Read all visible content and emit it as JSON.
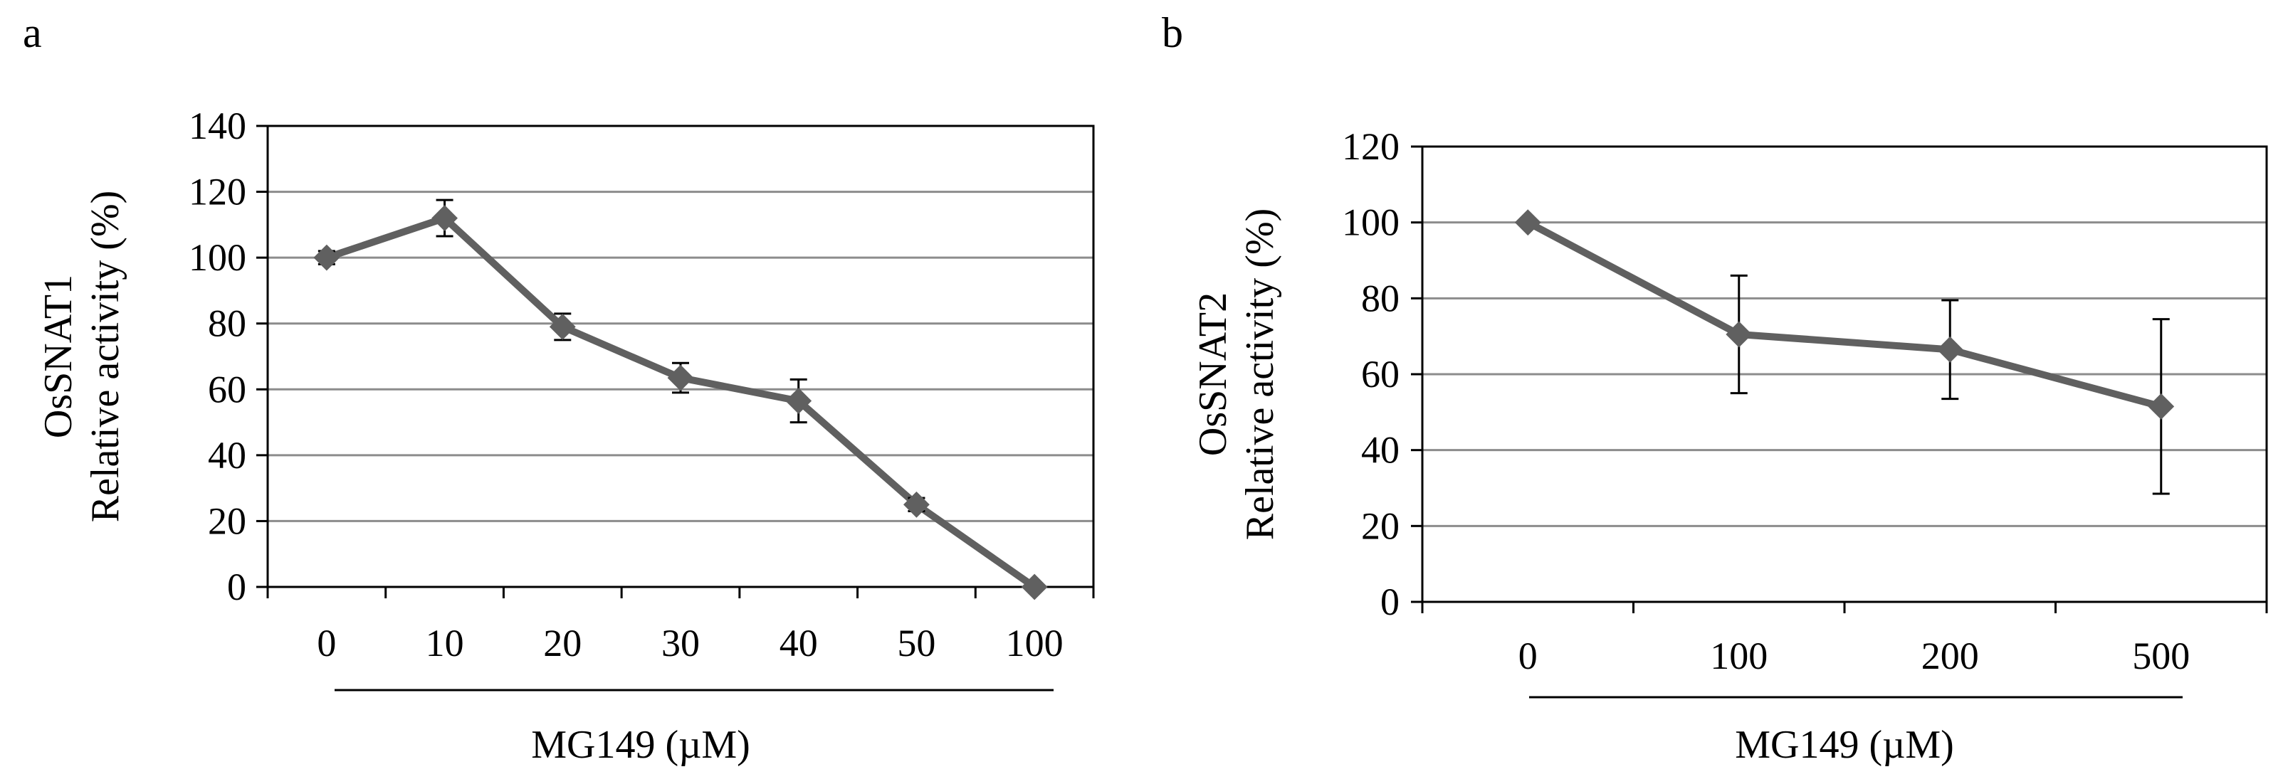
{
  "chart_data": [
    {
      "type": "line",
      "panel_label": "a",
      "title": "",
      "categories": [
        "0",
        "10",
        "20",
        "30",
        "40",
        "50",
        "100"
      ],
      "series": [
        {
          "name": "OsSNAT1",
          "values": [
            100,
            112,
            79,
            63.5,
            56.5,
            25,
            0
          ],
          "error": [
            2,
            5.5,
            4,
            4.5,
            6.5,
            2,
            0
          ]
        }
      ],
      "ylabel_line1": "OsSNAT1",
      "ylabel_line2": "Relative activity (%)",
      "xlabel": "MG149 (µM)",
      "ylim": [
        0,
        140
      ],
      "yticks": [
        0,
        20,
        40,
        60,
        80,
        100,
        120,
        140
      ],
      "grid": true,
      "color": "#606060"
    },
    {
      "type": "line",
      "panel_label": "b",
      "title": "",
      "categories": [
        "0",
        "100",
        "200",
        "500"
      ],
      "series": [
        {
          "name": "OsSNAT2",
          "values": [
            100,
            70.5,
            66.5,
            51.5
          ],
          "error": [
            0,
            15.5,
            13,
            23
          ]
        }
      ],
      "ylabel_line1": "OsSNAT2",
      "ylabel_line2": "Relative activity (%)",
      "xlabel": "MG149 (µM)",
      "ylim": [
        0,
        120
      ],
      "yticks": [
        0,
        20,
        40,
        60,
        80,
        100,
        120
      ],
      "grid": true,
      "color": "#606060"
    }
  ]
}
